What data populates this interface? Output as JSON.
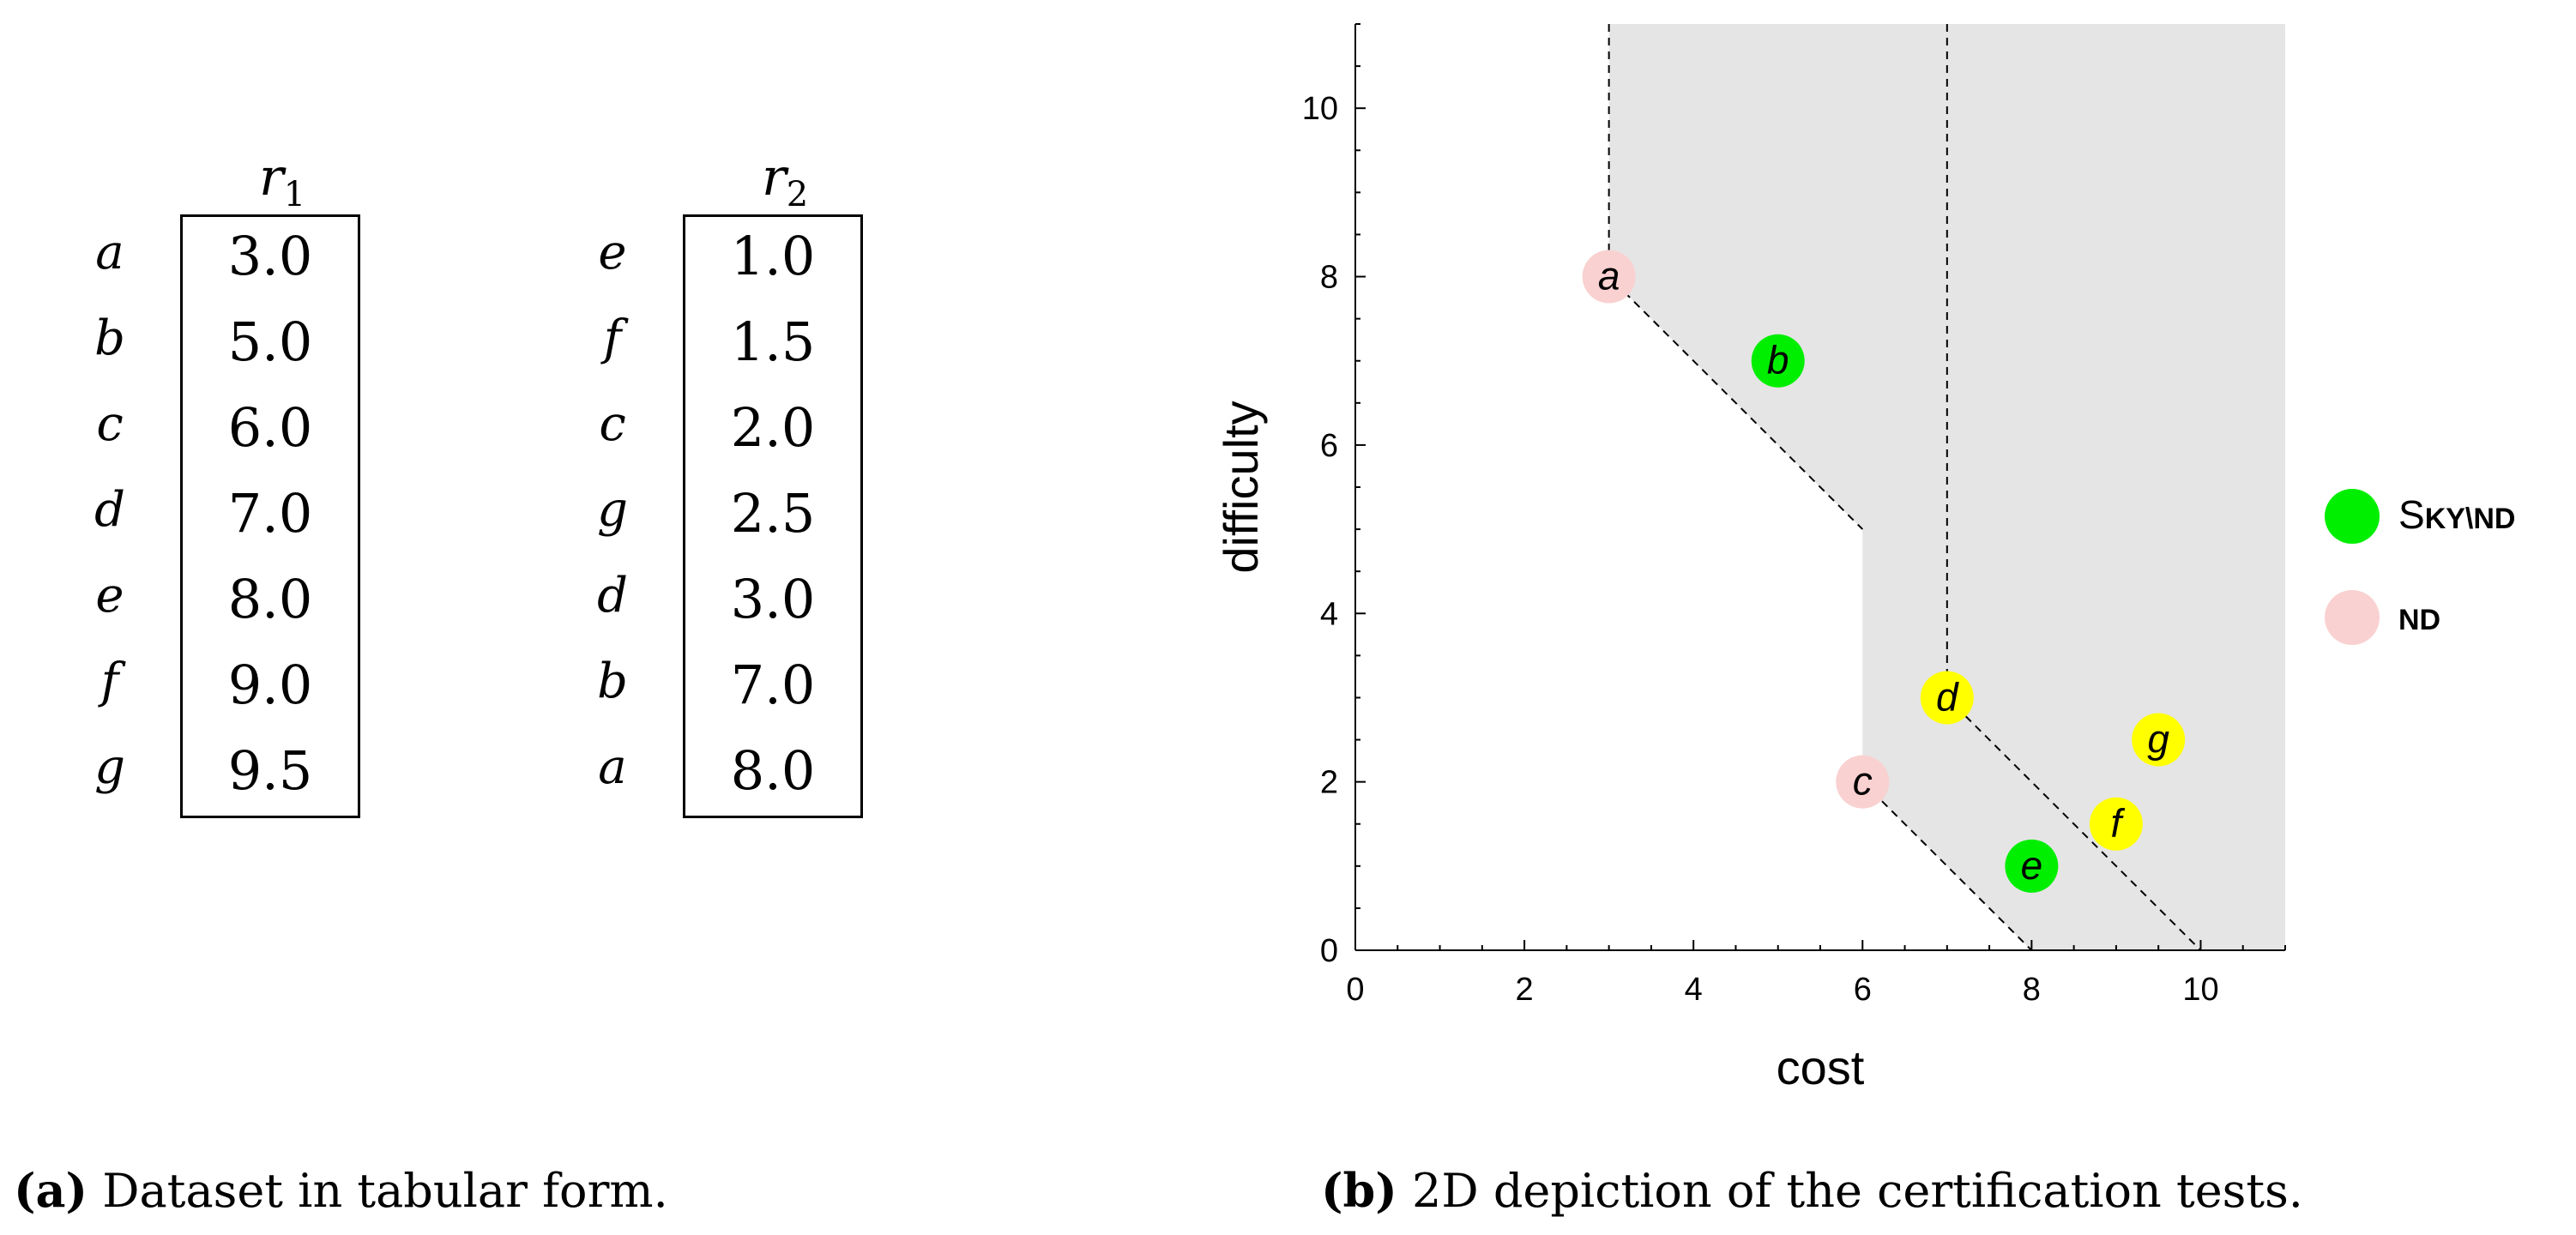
{
  "panel_a": {
    "caption_label": "(a)",
    "caption_text": " Dataset in tabular form.",
    "table_r1": {
      "header_var": "r",
      "header_sub": "1",
      "rows": [
        {
          "key": "a",
          "value": "3.0"
        },
        {
          "key": "b",
          "value": "5.0"
        },
        {
          "key": "c",
          "value": "6.0"
        },
        {
          "key": "d",
          "value": "7.0"
        },
        {
          "key": "e",
          "value": "8.0"
        },
        {
          "key": "f",
          "value": "9.0"
        },
        {
          "key": "g",
          "value": "9.5"
        }
      ]
    },
    "table_r2": {
      "header_var": "r",
      "header_sub": "2",
      "rows": [
        {
          "key": "e",
          "value": "1.0"
        },
        {
          "key": "f",
          "value": "1.5"
        },
        {
          "key": "c",
          "value": "2.0"
        },
        {
          "key": "g",
          "value": "2.5"
        },
        {
          "key": "d",
          "value": "3.0"
        },
        {
          "key": "b",
          "value": "7.0"
        },
        {
          "key": "a",
          "value": "8.0"
        }
      ]
    }
  },
  "panel_b": {
    "caption_label": "(b)",
    "caption_text": " 2D depiction of the certification tests."
  },
  "chart_data": {
    "type": "scatter",
    "title": "",
    "xlabel": "cost",
    "ylabel": "difficulty",
    "xlim": [
      0,
      11
    ],
    "ylim": [
      0,
      11
    ],
    "xticks": [
      0,
      2,
      4,
      6,
      8,
      10
    ],
    "yticks": [
      0,
      2,
      4,
      6,
      8,
      10
    ],
    "grid": false,
    "legend_position": "right",
    "colors": {
      "sky_nd": "#00ee00",
      "nd": "#f9d1d0",
      "other": "#ffff00",
      "shade": "#e5e5e5"
    },
    "legend": [
      {
        "label_cap": "S",
        "label_small": "KY\\ND",
        "color": "#00ee00"
      },
      {
        "label_cap": "",
        "label_small": "ND",
        "color": "#f9d1d0"
      }
    ],
    "points": [
      {
        "label": "a",
        "x": 3,
        "y": 8,
        "color": "#f9d1d0"
      },
      {
        "label": "b",
        "x": 5,
        "y": 7,
        "color": "#00ee00"
      },
      {
        "label": "c",
        "x": 6,
        "y": 2,
        "color": "#f9d1d0"
      },
      {
        "label": "d",
        "x": 7,
        "y": 3,
        "color": "#ffff00"
      },
      {
        "label": "e",
        "x": 8,
        "y": 1,
        "color": "#00ee00"
      },
      {
        "label": "f",
        "x": 9,
        "y": 1.5,
        "color": "#ffff00"
      },
      {
        "label": "g",
        "x": 9.5,
        "y": 2.5,
        "color": "#ffff00"
      }
    ],
    "shaded_region": [
      [
        3,
        11
      ],
      [
        3,
        8
      ],
      [
        6,
        5
      ],
      [
        6,
        2
      ],
      [
        8,
        0
      ],
      [
        11,
        0
      ],
      [
        11,
        11
      ]
    ],
    "dashed_lines": [
      [
        [
          3,
          11
        ],
        [
          3,
          8
        ],
        [
          6,
          5
        ]
      ],
      [
        [
          6,
          2
        ],
        [
          8,
          0
        ]
      ],
      [
        [
          7,
          11
        ],
        [
          7,
          3
        ],
        [
          10,
          0
        ]
      ],
      [
        [
          8,
          0
        ],
        [
          11,
          0
        ]
      ]
    ]
  }
}
